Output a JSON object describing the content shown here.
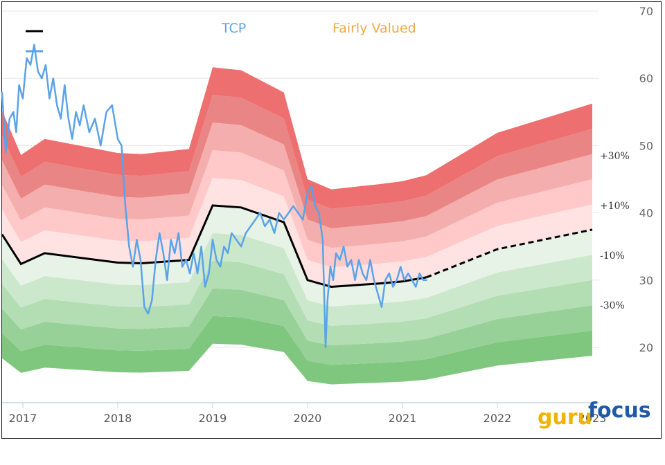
{
  "chart_data": {
    "type": "line",
    "title": "",
    "legend": [
      {
        "name": "TCP",
        "color": "#5aa3e8"
      },
      {
        "name": "Fairly Valued",
        "color": "#f0a84a"
      }
    ],
    "ylim": [
      15,
      70
    ],
    "y_ticks": [
      20,
      30,
      40,
      50,
      60,
      70
    ],
    "x_ticks": [
      "2017",
      "2018",
      "2019",
      "2020",
      "2021",
      "2022",
      "2023"
    ],
    "xlim": [
      2016.78,
      2023.15
    ],
    "grid": true,
    "band_labels": [
      {
        "label": "+30%",
        "value": 48.5
      },
      {
        "label": "+10%",
        "value": 41.1
      },
      {
        "label": "-10%",
        "value": 33.7
      },
      {
        "label": "-30%",
        "value": 26.3
      }
    ],
    "fair_value": {
      "name": "Fairly Valued",
      "color": "#000000",
      "x": [
        2016.78,
        2016.98,
        2017.23,
        2018.0,
        2018.25,
        2018.75,
        2019.0,
        2019.3,
        2019.75,
        2020.0,
        2020.25,
        2020.75,
        2021.0,
        2021.25
      ],
      "y": [
        36.8,
        32.4,
        34.0,
        32.6,
        32.5,
        33.0,
        41.1,
        40.8,
        38.6,
        30.0,
        29.0,
        29.5,
        29.8,
        30.4
      ]
    },
    "fair_value_projection": {
      "x": [
        2021.25,
        2022.0,
        2023.0
      ],
      "y": [
        30.4,
        34.6,
        37.5
      ]
    },
    "bands": {
      "multipliers": [
        0.5,
        0.6,
        0.7,
        0.8,
        0.9,
        1.0,
        1.1,
        1.2,
        1.3,
        1.4,
        1.5
      ],
      "colors": [
        "#7fc77f",
        "#98d198",
        "#b3ddb3",
        "#cce8cc",
        "#e6f3e6",
        "#ffe3e3",
        "#ffc9c9",
        "#f4aeae",
        "#e98585",
        "#ee6f6f"
      ],
      "end_year": 2023.0,
      "fair_series_x": [
        2016.78,
        2016.98,
        2017.23,
        2018.0,
        2018.25,
        2018.75,
        2019.0,
        2019.3,
        2019.75,
        2020.0,
        2020.25,
        2020.75,
        2021.0,
        2021.25,
        2022.0,
        2023.0
      ],
      "fair_series_y": [
        36.8,
        32.4,
        34.0,
        32.6,
        32.5,
        33.0,
        41.1,
        40.8,
        38.6,
        30.0,
        29.0,
        29.5,
        29.8,
        30.4,
        34.6,
        37.5
      ]
    },
    "series": [
      {
        "name": "TCP",
        "color": "#5aa3e8",
        "x": [
          2016.78,
          2016.82,
          2016.86,
          2016.9,
          2016.93,
          2016.96,
          2017.0,
          2017.04,
          2017.08,
          2017.12,
          2017.16,
          2017.2,
          2017.24,
          2017.28,
          2017.32,
          2017.36,
          2017.4,
          2017.44,
          2017.48,
          2017.52,
          2017.56,
          2017.6,
          2017.64,
          2017.7,
          2017.76,
          2017.82,
          2017.88,
          2017.94,
          2018.0,
          2018.04,
          2018.08,
          2018.12,
          2018.16,
          2018.2,
          2018.24,
          2018.28,
          2018.32,
          2018.36,
          2018.4,
          2018.44,
          2018.48,
          2018.52,
          2018.56,
          2018.6,
          2018.64,
          2018.68,
          2018.72,
          2018.76,
          2018.8,
          2018.84,
          2018.88,
          2018.92,
          2018.96,
          2019.0,
          2019.04,
          2019.08,
          2019.12,
          2019.16,
          2019.2,
          2019.25,
          2019.3,
          2019.35,
          2019.4,
          2019.45,
          2019.5,
          2019.55,
          2019.6,
          2019.65,
          2019.7,
          2019.75,
          2019.8,
          2019.85,
          2019.9,
          2019.95,
          2020.0,
          2020.04,
          2020.08,
          2020.12,
          2020.16,
          2020.19,
          2020.21,
          2020.24,
          2020.27,
          2020.3,
          2020.34,
          2020.38,
          2020.42,
          2020.46,
          2020.5,
          2020.54,
          2020.58,
          2020.62,
          2020.66,
          2020.7,
          2020.74,
          2020.78,
          2020.82,
          2020.86,
          2020.9,
          2020.94,
          2020.98,
          2021.02,
          2021.06,
          2021.1,
          2021.14,
          2021.18,
          2021.22,
          2021.26
        ],
        "y": [
          58,
          49,
          54,
          55,
          52,
          59,
          57,
          63,
          62,
          65,
          61,
          60,
          62,
          57,
          60,
          56,
          54,
          59,
          54,
          51,
          55,
          53,
          56,
          52,
          54,
          50,
          55,
          56,
          51,
          50,
          41,
          35,
          32,
          36,
          33,
          26,
          25,
          27,
          33,
          37,
          34,
          30,
          36,
          34,
          37,
          32,
          33,
          31,
          34,
          31,
          35,
          29,
          31,
          36,
          33,
          32,
          35,
          34,
          37,
          36,
          35,
          37,
          38,
          39,
          40,
          38,
          39,
          37,
          40,
          39,
          40,
          41,
          40,
          39,
          43,
          44,
          41,
          40,
          36,
          20,
          27,
          32,
          30,
          34,
          33,
          35,
          32,
          33,
          30,
          33,
          31,
          30,
          33,
          30,
          28,
          26,
          30,
          31,
          29,
          30,
          32,
          30,
          31,
          30,
          29,
          31,
          30,
          30
        ]
      }
    ]
  },
  "logo": {
    "guru": "guru",
    "focus": "focus"
  }
}
